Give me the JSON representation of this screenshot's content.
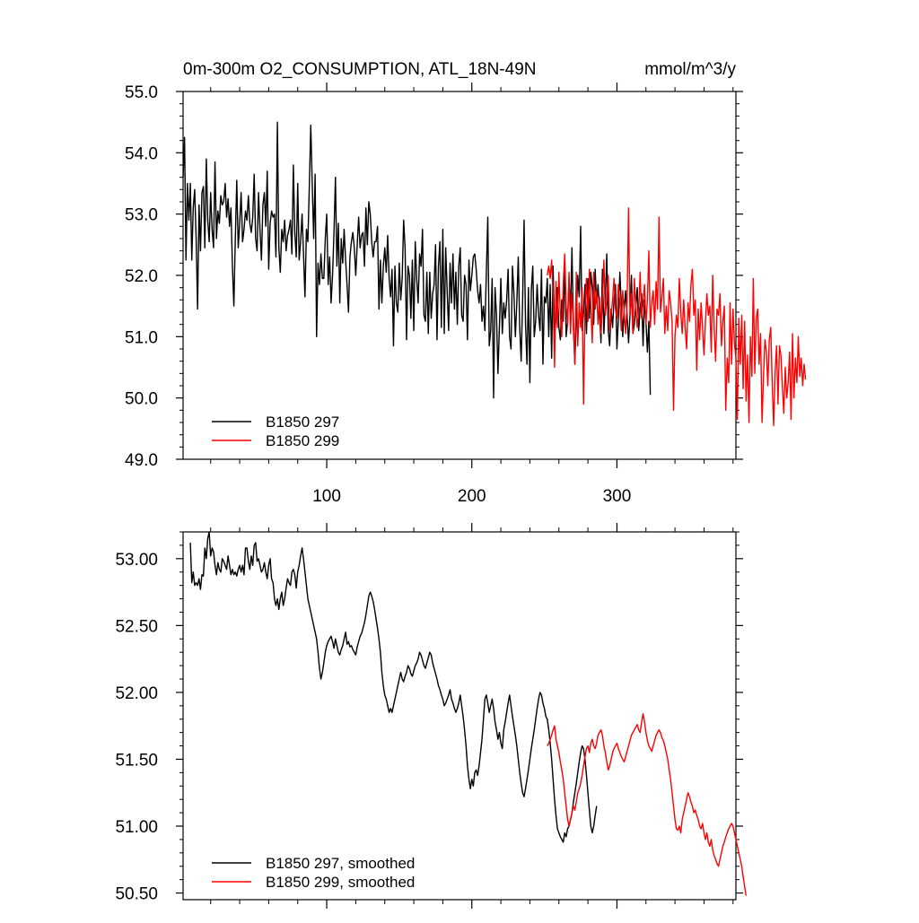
{
  "chart_data": [
    {
      "type": "line",
      "title_left": "0m-300m O2_CONSUMPTION, ATL_18N-49N",
      "title_right": "mmol/m^3/y",
      "xlim": [
        1,
        382
      ],
      "ylim": [
        49.0,
        55.0
      ],
      "x_ticks": [
        100,
        200,
        300
      ],
      "x_tick_labels": [
        "100",
        "200",
        "300"
      ],
      "y_ticks": [
        49.0,
        50.0,
        51.0,
        52.0,
        53.0,
        54.0,
        55.0
      ],
      "y_tick_labels": [
        "49.0",
        "50.0",
        "51.0",
        "52.0",
        "53.0",
        "54.0",
        "55.0"
      ],
      "grid": false,
      "legend_position": "bottom-left",
      "series": [
        {
          "name": "B1850 297",
          "color": "#000000",
          "x_start": 1,
          "values": [
            53.6,
            54.25,
            52.25,
            53.5,
            52.9,
            53.5,
            52.25,
            53.1,
            53.4,
            52.6,
            51.45,
            53.15,
            52.4,
            53.35,
            53.45,
            52.45,
            53.9,
            52.9,
            52.55,
            53.35,
            52.75,
            52.45,
            53.85,
            52.6,
            53.05,
            52.85,
            53.3,
            53.15,
            53.2,
            53.5,
            52.95,
            53.25,
            52.8,
            53.1,
            52.15,
            51.5,
            52.6,
            53.55,
            52.45,
            52.85,
            53.35,
            52.55,
            52.75,
            53.05,
            52.9,
            53.3,
            52.85,
            52.7,
            52.95,
            53.65,
            52.6,
            52.4,
            53.35,
            52.75,
            52.25,
            53.15,
            53.35,
            52.8,
            53.7,
            52.1,
            52.85,
            53.05,
            52.95,
            53.0,
            52.3,
            54.5,
            52.45,
            52.05,
            52.75,
            52.55,
            52.9,
            52.4,
            52.65,
            52.75,
            52.9,
            52.35,
            53.8,
            52.7,
            52.3,
            53.5,
            52.25,
            52.55,
            53.0,
            52.35,
            51.65,
            52.75,
            52.55,
            53.45,
            54.45,
            53.5,
            52.6,
            53.65,
            51.0,
            52.2,
            51.85,
            52.35,
            51.95,
            51.95,
            52.6,
            53.0,
            51.85,
            52.3,
            51.55,
            52.0,
            52.7,
            53.6,
            52.15,
            52.85,
            51.55,
            52.6,
            52.2,
            52.75,
            52.25,
            51.85,
            51.4,
            52.3,
            52.55,
            52.7,
            52.45,
            52.0,
            52.5,
            52.95,
            52.45,
            52.65,
            52.7,
            52.15,
            53.1,
            52.5,
            53.2,
            53.0,
            52.55,
            52.3,
            52.55,
            52.55,
            52.8,
            51.45,
            52.25,
            51.55,
            52.15,
            52.45,
            52.05,
            52.65,
            51.95,
            51.65,
            52.1,
            50.85,
            52.15,
            51.55,
            51.4,
            52.2,
            51.6,
            51.95,
            52.9,
            52.45,
            50.95,
            52.15,
            52.0,
            51.3,
            52.25,
            51.1,
            52.55,
            51.95,
            51.55,
            52.35,
            52.15,
            52.75,
            51.35,
            51.25,
            52.05,
            51.05,
            52.05,
            51.3,
            51.7,
            51.85,
            52.5,
            50.95,
            52.15,
            52.55,
            51.15,
            52.75,
            51.05,
            52.45,
            51.75,
            51.1,
            52.2,
            51.55,
            52.35,
            51.45,
            52.05,
            51.2,
            52.15,
            52.45,
            51.35,
            51.25,
            52.0,
            51.85,
            50.95,
            52.25,
            51.75,
            52.0,
            52.3,
            52.35,
            52.1,
            51.75,
            51.55,
            51.85,
            51.25,
            51.5,
            51.1,
            52.05,
            52.95,
            50.85,
            51.1,
            51.95,
            50.0,
            51.8,
            51.35,
            50.4,
            51.15,
            51.95,
            51.05,
            51.55,
            51.3,
            51.6,
            52.1,
            51.0,
            50.8,
            52.15,
            51.7,
            51.0,
            51.55,
            52.3,
            51.15,
            50.6,
            51.6,
            52.9,
            51.2,
            50.55,
            51.8,
            50.25,
            51.75,
            52.15,
            51.0,
            51.25,
            51.85,
            51.35,
            51.1,
            52.1,
            50.55,
            51.65,
            51.55,
            51.95,
            51.0,
            51.85,
            50.65,
            52.15,
            51.0,
            51.3,
            51.8,
            51.15,
            50.95,
            51.6,
            51.25,
            52.2,
            51.0,
            51.25,
            51.95,
            51.35,
            52.45,
            51.15,
            50.55,
            51.3,
            52.0,
            51.65,
            52.8,
            51.1,
            51.4,
            51.85,
            51.05,
            51.95,
            51.3,
            52.05,
            51.8,
            51.2,
            52.1,
            51.55,
            51.85,
            51.4,
            50.9,
            52.1,
            51.05,
            51.6,
            52.35,
            51.1,
            50.85,
            51.45,
            51.15,
            51.6,
            51.85,
            50.8,
            51.3,
            52.05,
            51.55,
            51.0,
            51.45,
            51.75,
            51.35,
            50.9,
            51.35,
            52.0,
            51.05,
            51.2,
            51.5,
            51.8,
            51.1,
            51.45,
            51.7,
            50.85,
            51.6,
            51.25,
            50.75,
            51.25,
            50.05
          ]
        },
        {
          "name": "B1850 299",
          "color": "#ff0000",
          "x_start": 252,
          "values": [
            52.0,
            52.15,
            51.95,
            52.25,
            51.7,
            50.5,
            51.9,
            51.15,
            52.05,
            51.35,
            51.0,
            51.85,
            52.35,
            51.5,
            51.2,
            52.05,
            51.05,
            51.7,
            51.3,
            50.55,
            52.05,
            50.85,
            51.55,
            51.15,
            51.8,
            49.9,
            51.45,
            51.95,
            51.25,
            52.1,
            51.5,
            50.9,
            52.05,
            51.45,
            51.75,
            51.2,
            51.65,
            51.05,
            51.55,
            52.25,
            51.35,
            51.6,
            52.0,
            51.1,
            51.35,
            51.6,
            51.95,
            51.45,
            51.3,
            51.85,
            51.55,
            51.1,
            51.75,
            51.4,
            51.05,
            51.55,
            53.1,
            51.35,
            51.7,
            51.05,
            51.95,
            51.5,
            51.15,
            51.4,
            52.05,
            51.3,
            51.55,
            51.85,
            51.2,
            51.6,
            52.4,
            51.15,
            51.55,
            51.75,
            51.2,
            51.9,
            51.45,
            52.95,
            51.4,
            51.65,
            51.95,
            51.05,
            51.5,
            51.1,
            51.75,
            51.55,
            51.25,
            49.8,
            51.0,
            51.35,
            51.15,
            51.95,
            51.4,
            51.05,
            51.6,
            51.15,
            50.8,
            51.55,
            51.25,
            51.85,
            52.1,
            51.35,
            51.6,
            50.45,
            51.45,
            50.95,
            51.55,
            51.15,
            50.7,
            51.25,
            51.7,
            51.35,
            51.5,
            50.75,
            52.0,
            51.15,
            50.6,
            51.45,
            51.35,
            51.7,
            50.85,
            51.25,
            51.5,
            49.8,
            50.65,
            50.25,
            51.55,
            50.55,
            51.45,
            50.9,
            50.65,
            49.65,
            51.3,
            50.55,
            51.35,
            50.15,
            51.25,
            49.95,
            50.7,
            49.6,
            51.0,
            50.35,
            51.95,
            50.4,
            51.3,
            51.45,
            50.55,
            51.05,
            49.6,
            50.35,
            50.95,
            50.75,
            50.2,
            50.95,
            51.15,
            50.25,
            49.55,
            50.4,
            50.85,
            49.9,
            50.85,
            50.7,
            50.2,
            49.75,
            50.5,
            50.0,
            50.25,
            50.75,
            49.65,
            51.05,
            50.0,
            50.65,
            50.25,
            51.0,
            50.35,
            50.65,
            50.2,
            50.55,
            50.3
          ]
        }
      ]
    },
    {
      "type": "line",
      "xlim": [
        1,
        382
      ],
      "ylim": [
        50.45,
        53.2
      ],
      "y_ticks": [
        50.5,
        51.0,
        51.5,
        52.0,
        52.5,
        53.0
      ],
      "y_tick_labels": [
        "50.50",
        "51.00",
        "51.50",
        "52.00",
        "52.50",
        "53.00"
      ],
      "grid": false,
      "legend_position": "bottom-left",
      "series": [
        {
          "name": "B1850 297, smoothed",
          "color": "#000000",
          "x_start": 6,
          "values": [
            53.12,
            52.82,
            52.9,
            52.8,
            52.82,
            52.8,
            52.85,
            52.77,
            52.88,
            52.87,
            53.08,
            53.0,
            53.15,
            53.2,
            53.02,
            53.08,
            53.05,
            52.95,
            52.88,
            52.97,
            52.92,
            52.9,
            53.0,
            52.98,
            52.95,
            52.92,
            53.02,
            52.95,
            52.88,
            52.92,
            52.88,
            52.9,
            52.87,
            52.92,
            52.95,
            52.9,
            52.95,
            52.88,
            53.08,
            53.08,
            52.98,
            52.92,
            53.02,
            52.95,
            53.1,
            53.12,
            52.98,
            53.0,
            52.95,
            52.9,
            52.92,
            52.97,
            52.9,
            52.85,
            52.95,
            53.0,
            52.85,
            52.82,
            52.7,
            52.65,
            52.7,
            52.62,
            52.7,
            52.75,
            52.65,
            52.7,
            52.78,
            52.85,
            52.82,
            52.8,
            52.9,
            52.92,
            52.88,
            52.78,
            52.9,
            52.95,
            53.02,
            53.08,
            53.0,
            52.9,
            52.8,
            52.7,
            52.65,
            52.6,
            52.55,
            52.5,
            52.45,
            52.4,
            52.3,
            52.18,
            52.1,
            52.15,
            52.22,
            52.3,
            52.35,
            52.38,
            52.4,
            52.42,
            52.38,
            52.33,
            52.4,
            52.35,
            52.3,
            52.28,
            52.32,
            52.35,
            52.4,
            52.45,
            52.36,
            52.38,
            52.34,
            52.35,
            52.32,
            52.3,
            52.28,
            52.34,
            52.38,
            52.42,
            52.44,
            52.48,
            52.52,
            52.58,
            52.65,
            52.72,
            52.75,
            52.72,
            52.68,
            52.62,
            52.55,
            52.48,
            52.4,
            52.3,
            52.15,
            52.05,
            51.98,
            51.95,
            51.9,
            51.85,
            51.88,
            51.85,
            51.9,
            51.95,
            52.0,
            52.05,
            52.1,
            52.15,
            52.1,
            52.08,
            52.12,
            52.15,
            52.2,
            52.18,
            52.14,
            52.12,
            52.16,
            52.2,
            52.22,
            52.25,
            52.3,
            52.28,
            52.24,
            52.2,
            52.18,
            52.22,
            52.26,
            52.3,
            52.28,
            52.22,
            52.18,
            52.14,
            52.1,
            52.05,
            52.02,
            51.98,
            51.95,
            51.9,
            51.92,
            51.95,
            51.98,
            52.02,
            51.95,
            51.92,
            51.88,
            51.85,
            51.88,
            51.92,
            51.98,
            51.9,
            51.82,
            51.72,
            51.6,
            51.45,
            51.35,
            51.28,
            51.35,
            51.3,
            51.4,
            51.42,
            51.38,
            51.45,
            51.55,
            51.65,
            51.8,
            51.95,
            51.98,
            51.92,
            51.85,
            51.9,
            51.95,
            51.88,
            51.78,
            51.72,
            51.65,
            51.7,
            51.62,
            51.58,
            51.72,
            51.78,
            51.85,
            51.92,
            51.98,
            51.9,
            51.82,
            51.75,
            51.68,
            51.6,
            51.5,
            51.4,
            51.32,
            51.25,
            51.22,
            51.28,
            51.35,
            51.42,
            51.5,
            51.58,
            51.65,
            51.72,
            51.8,
            51.88,
            51.95,
            52.0,
            51.98,
            51.92,
            51.88,
            51.82,
            51.8,
            51.72,
            51.62,
            51.5,
            51.35,
            51.2,
            51.08,
            50.98,
            50.95,
            50.92,
            50.9,
            50.88,
            50.95,
            50.92,
            50.98,
            51.0,
            51.05,
            51.1,
            51.18,
            51.25,
            51.32,
            51.4,
            51.48,
            51.55,
            51.6,
            51.58,
            51.5,
            51.38,
            51.25,
            51.12,
            51.0,
            50.95,
            51.0,
            51.08,
            51.15
          ]
        },
        {
          "name": "B1850 299, smoothed",
          "color": "#ff0000",
          "x_start": 252,
          "values": [
            51.6,
            51.62,
            51.65,
            51.68,
            51.72,
            51.75,
            51.65,
            51.6,
            51.55,
            51.48,
            51.42,
            51.35,
            51.25,
            51.15,
            51.05,
            51.0,
            51.05,
            51.1,
            51.15,
            51.12,
            51.18,
            51.25,
            51.28,
            51.32,
            51.38,
            51.45,
            51.52,
            51.58,
            51.6,
            51.55,
            51.62,
            51.65,
            51.6,
            51.58,
            51.62,
            51.68,
            51.7,
            51.72,
            51.68,
            51.6,
            51.55,
            51.48,
            51.42,
            51.45,
            51.5,
            51.55,
            51.58,
            51.6,
            51.62,
            51.58,
            51.55,
            51.52,
            51.5,
            51.48,
            51.52,
            51.56,
            51.6,
            51.64,
            51.68,
            51.7,
            51.72,
            51.74,
            51.76,
            51.72,
            51.7,
            51.78,
            51.84,
            51.78,
            51.7,
            51.64,
            51.6,
            51.58,
            51.56,
            51.6,
            51.64,
            51.68,
            51.7,
            51.72,
            51.7,
            51.66,
            51.64,
            51.6,
            51.55,
            51.5,
            51.42,
            51.35,
            51.25,
            51.15,
            51.05,
            50.98,
            50.97,
            51.0,
            50.95,
            51.05,
            51.1,
            51.15,
            51.2,
            51.25,
            51.22,
            51.18,
            51.15,
            51.1,
            51.12,
            51.08,
            51.05,
            51.0,
            50.98,
            51.02,
            50.95,
            50.9,
            50.95,
            50.88,
            50.85,
            50.9,
            50.82,
            50.78,
            50.75,
            50.72,
            50.7,
            50.75,
            50.8,
            50.85,
            50.88,
            50.92,
            50.95,
            50.98,
            51.0,
            51.02,
            51.0,
            50.95,
            50.9,
            50.85,
            50.8,
            50.75,
            50.7,
            50.62,
            50.55,
            50.48
          ]
        }
      ]
    }
  ]
}
